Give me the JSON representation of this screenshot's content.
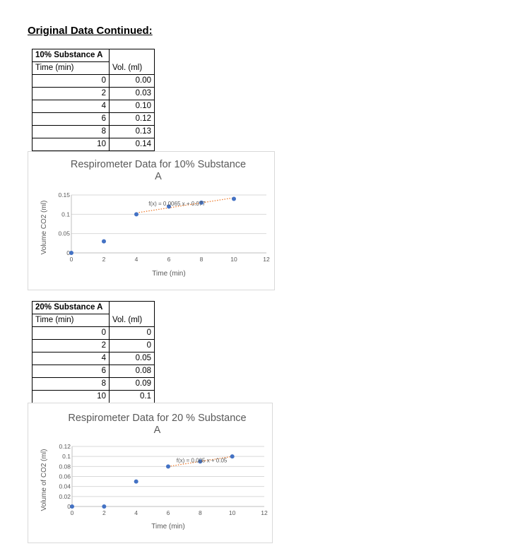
{
  "heading": "Original Data Continued:",
  "tables": [
    {
      "title": "10% Substance A",
      "col1_header": "Time (min)",
      "col2_header": "Vol. (ml)",
      "rows": [
        {
          "time": "0",
          "vol": "0.00"
        },
        {
          "time": "2",
          "vol": "0.03"
        },
        {
          "time": "4",
          "vol": "0.10"
        },
        {
          "time": "6",
          "vol": "0.12"
        },
        {
          "time": "8",
          "vol": "0.13"
        },
        {
          "time": "10",
          "vol": "0.14"
        }
      ]
    },
    {
      "title": "20% Substance A",
      "col1_header": "Time (min)",
      "col2_header": "Vol. (ml)",
      "rows": [
        {
          "time": "0",
          "vol": "0"
        },
        {
          "time": "2",
          "vol": "0"
        },
        {
          "time": "4",
          "vol": "0.05"
        },
        {
          "time": "6",
          "vol": "0.08"
        },
        {
          "time": "8",
          "vol": "0.09"
        },
        {
          "time": "10",
          "vol": "0.1"
        }
      ]
    }
  ],
  "chart_data": [
    {
      "type": "scatter",
      "title": "Respirometer Data for 10% Substance A",
      "title_lines": [
        "Respirometer Data for 10% Substance",
        "A"
      ],
      "xlabel": "Time (min)",
      "ylabel": "Volume CO2 (ml)",
      "xlim": [
        0,
        12
      ],
      "ylim": [
        0,
        0.15
      ],
      "xticks": [
        0,
        2,
        4,
        6,
        8,
        10,
        12
      ],
      "xtick_labels": [
        "0",
        "2",
        "4",
        "6",
        "8",
        "10",
        "12"
      ],
      "yticks": [
        0,
        0.05,
        0.1,
        0.15
      ],
      "ytick_labels": [
        "0",
        "0.05",
        "0.1",
        "0.15"
      ],
      "grid": true,
      "x": [
        0,
        2,
        4,
        6,
        8,
        10
      ],
      "y": [
        0.0,
        0.03,
        0.1,
        0.12,
        0.13,
        0.14
      ],
      "trendline": {
        "x": [
          4,
          10
        ],
        "y": [
          0.1037,
          0.1427
        ],
        "label": "f(x) = 0.0065 x + 0.077",
        "label_at": [
          6.5,
          0.123
        ]
      },
      "marker_color": "#4472c4",
      "trend_color": "#ed7d31"
    },
    {
      "type": "scatter",
      "title": "Respirometer Data for 20 % Substance A",
      "title_lines": [
        "Respirometer Data for 20 % Substance",
        "A"
      ],
      "xlabel": "Time (min)",
      "ylabel": "Volume of CO2 (ml)",
      "xlim": [
        0,
        12
      ],
      "ylim": [
        0,
        0.12
      ],
      "xticks": [
        0,
        2,
        4,
        6,
        8,
        10,
        12
      ],
      "xtick_labels": [
        "0",
        "2",
        "4",
        "6",
        "8",
        "10",
        "12"
      ],
      "yticks": [
        0,
        0.02,
        0.04,
        0.06,
        0.08,
        0.1,
        0.12
      ],
      "ytick_labels": [
        "0",
        "0.02",
        "0.04",
        "0.06",
        "0.08",
        "0.1",
        "0.12"
      ],
      "grid": true,
      "x": [
        0,
        2,
        4,
        6,
        8,
        10
      ],
      "y": [
        0,
        0,
        0.05,
        0.08,
        0.09,
        0.1
      ],
      "trendline": {
        "x": [
          6,
          10
        ],
        "y": [
          0.08,
          0.1
        ],
        "label": "f(x) = 0.005 x + 0.05",
        "label_at": [
          8.1,
          0.088
        ]
      },
      "marker_color": "#4472c4",
      "trend_color": "#ed7d31"
    }
  ]
}
